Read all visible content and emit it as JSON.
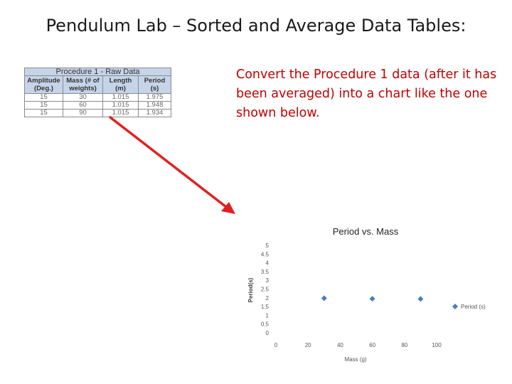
{
  "slide": {
    "title": "Pendulum Lab – Sorted and Average Data Tables:"
  },
  "table": {
    "caption": "Procedure 1 - Raw Data",
    "headers": [
      {
        "line1": "Amplitude",
        "line2": "(Deg.)"
      },
      {
        "line1": "Mass (# of",
        "line2": "weights)"
      },
      {
        "line1": "Length",
        "line2": "(m)"
      },
      {
        "line1": "Period",
        "line2": "(s)"
      }
    ],
    "rows": [
      [
        "15",
        "30",
        "1.015",
        "1.975"
      ],
      [
        "15",
        "60",
        "1.015",
        "1.948"
      ],
      [
        "15",
        "90",
        "1.015",
        "1.934"
      ]
    ]
  },
  "instruction": {
    "text": "Convert the Procedure 1 data (after it has been averaged) into a chart like the one shown below."
  },
  "colors": {
    "instruction_text": "#c00000",
    "arrow": "#e02020",
    "table_header_bg": "#c6d4ea",
    "series_marker": "#4a7ebb"
  },
  "chart_data": {
    "type": "scatter",
    "title": "Period vs. Mass",
    "xlabel": "Mass (g)",
    "ylabel": "Period(s)",
    "xlim": [
      0,
      100
    ],
    "ylim": [
      0,
      5
    ],
    "x_ticks": [
      "0",
      "20",
      "40",
      "60",
      "80",
      "100"
    ],
    "y_ticks": [
      "0",
      "0.5",
      "1",
      "1.5",
      "2",
      "2.5",
      "3",
      "3.5",
      "4",
      "4.5",
      "5"
    ],
    "grid": false,
    "legend_position": "right",
    "series": [
      {
        "name": "Period (s)",
        "x": [
          30,
          60,
          90
        ],
        "y": [
          1.975,
          1.948,
          1.934
        ]
      }
    ]
  }
}
